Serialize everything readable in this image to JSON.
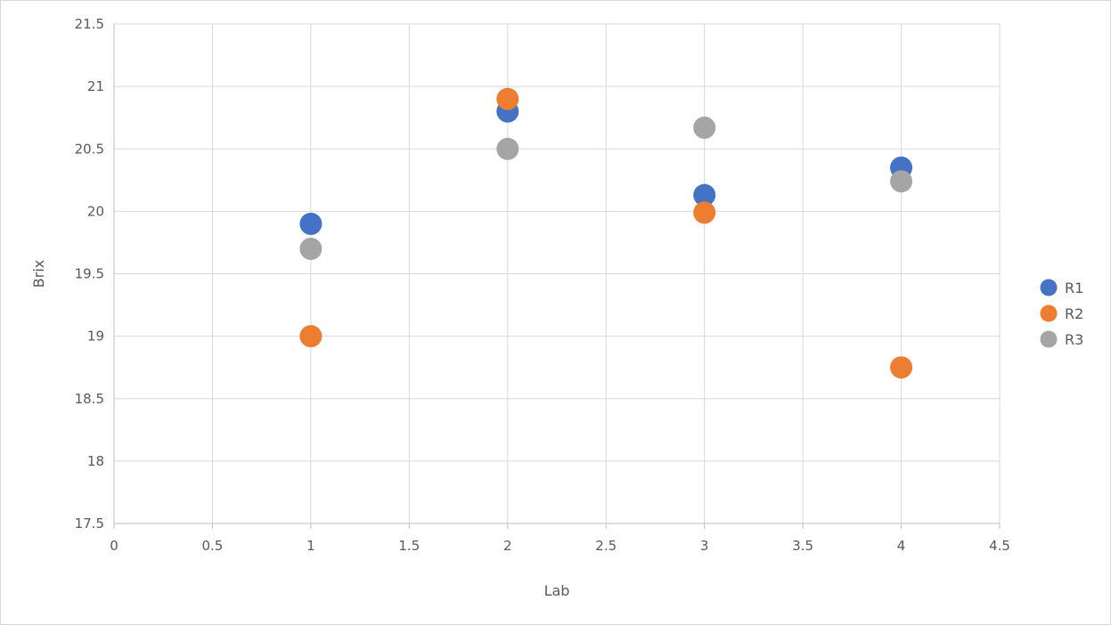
{
  "chart_data": {
    "type": "scatter",
    "title": "",
    "xlabel": "Lab",
    "ylabel": "Brix",
    "xlim": [
      0,
      4.5
    ],
    "ylim": [
      17.5,
      21.5
    ],
    "x_ticks": [
      "0",
      "0.5",
      "1",
      "1.5",
      "2",
      "2.5",
      "3",
      "3.5",
      "4",
      "4.5"
    ],
    "y_ticks": [
      "17.5",
      "18",
      "18.5",
      "19",
      "19.5",
      "20",
      "20.5",
      "21",
      "21.5"
    ],
    "grid": true,
    "legend_position": "right",
    "series": [
      {
        "name": "R1",
        "color": "#4472C4",
        "points": [
          {
            "x": 1,
            "y": 19.9
          },
          {
            "x": 2,
            "y": 20.8
          },
          {
            "x": 3,
            "y": 20.13
          },
          {
            "x": 4,
            "y": 20.35
          }
        ]
      },
      {
        "name": "R2",
        "color": "#ED7D31",
        "points": [
          {
            "x": 1,
            "y": 19.0
          },
          {
            "x": 2,
            "y": 20.9
          },
          {
            "x": 3,
            "y": 19.99
          },
          {
            "x": 4,
            "y": 18.75
          }
        ]
      },
      {
        "name": "R3",
        "color": "#A5A5A5",
        "points": [
          {
            "x": 1,
            "y": 19.7
          },
          {
            "x": 2,
            "y": 20.5
          },
          {
            "x": 3,
            "y": 20.67
          },
          {
            "x": 4,
            "y": 20.24
          }
        ]
      }
    ]
  }
}
